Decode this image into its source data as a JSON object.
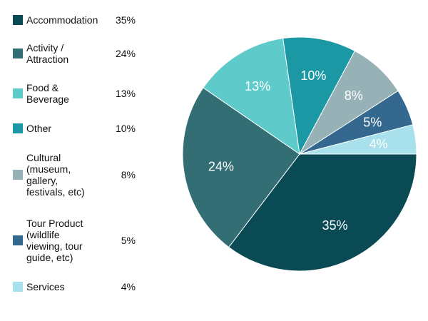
{
  "chart_data": {
    "type": "pie",
    "slices": [
      {
        "label": "Accommodation",
        "value": 35,
        "display": "35%",
        "color": "#0a4a55"
      },
      {
        "label": "Activity /\nAttraction",
        "value": 24,
        "display": "24%",
        "color": "#346e75"
      },
      {
        "label": "Food &\nBeverage",
        "value": 13,
        "display": "13%",
        "color": "#5ecaca"
      },
      {
        "label": "Other",
        "value": 10,
        "display": "10%",
        "color": "#1c97a4"
      },
      {
        "label": "Cultural\n(museum,\ngallery,\nfestivals, etc)",
        "value": 8,
        "display": "8%",
        "color": "#97b2b6"
      },
      {
        "label": "Tour Product\n(wildlife\nviewing, tour\nguide, etc)",
        "value": 5,
        "display": "5%",
        "color": "#35688f"
      },
      {
        "label": "Services",
        "value": 4,
        "display": "4%",
        "color": "#a8e1ec"
      }
    ],
    "legend_position": "left"
  }
}
